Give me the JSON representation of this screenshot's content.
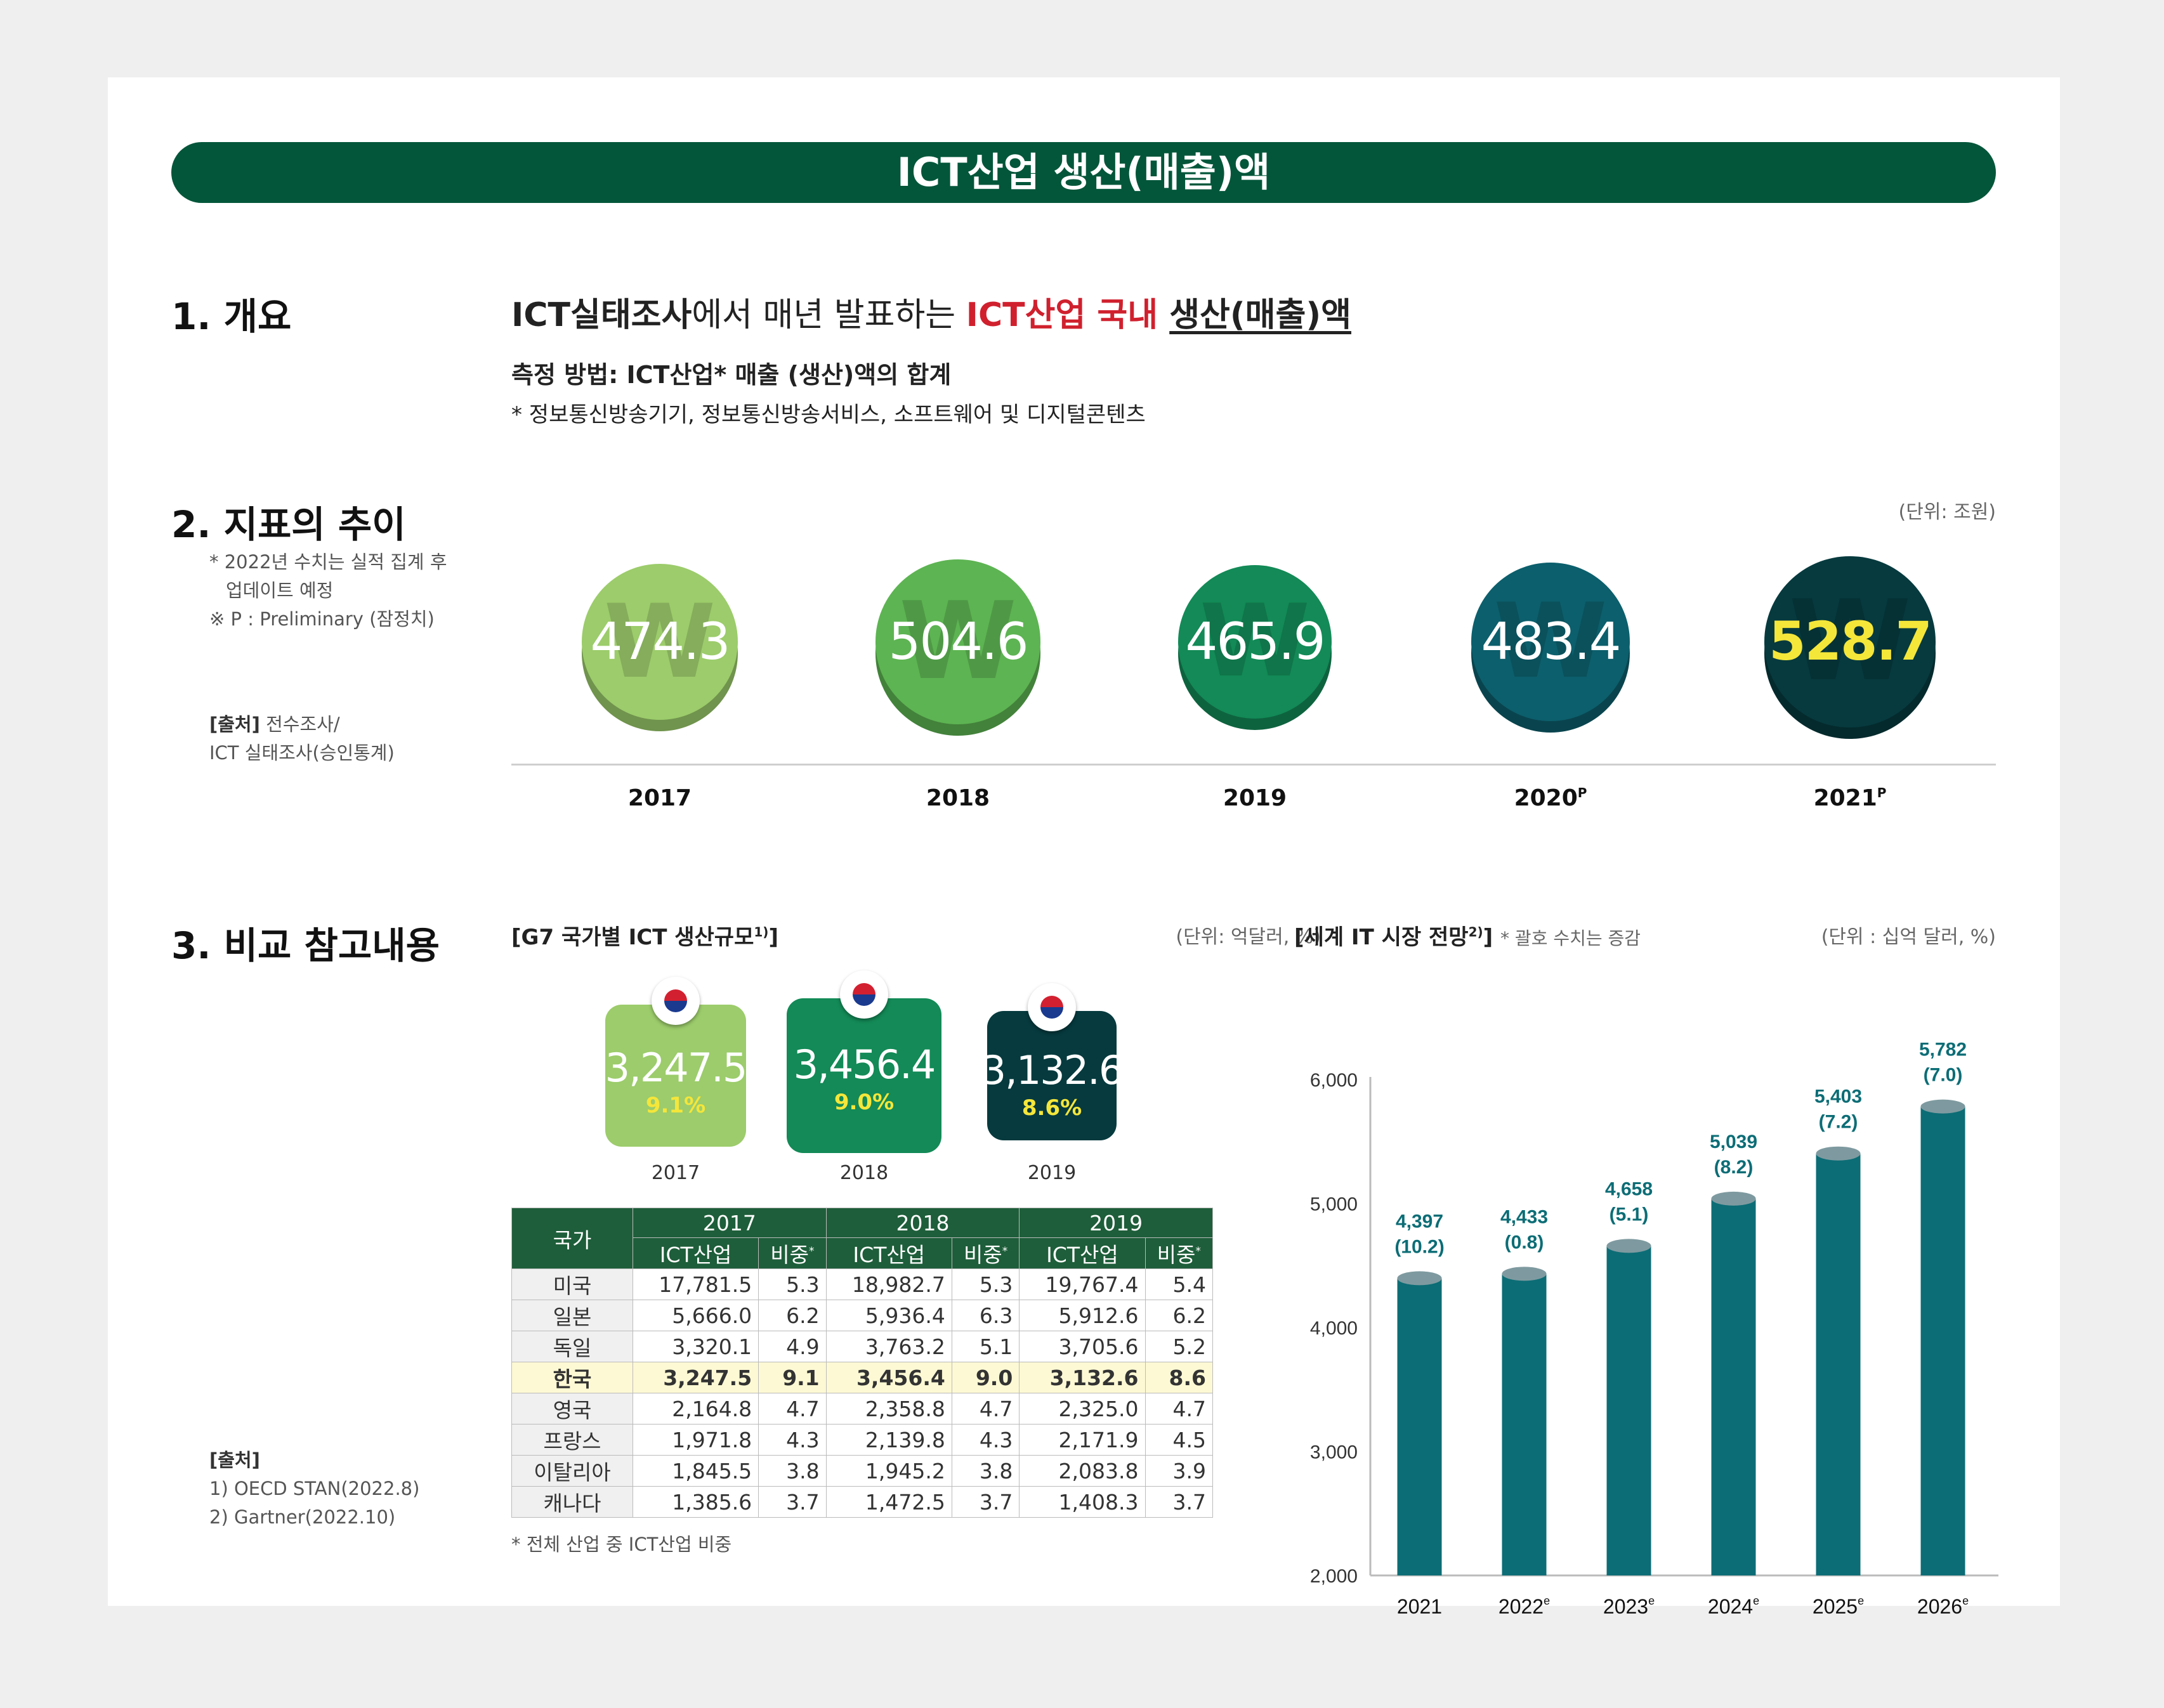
{
  "banner_title": "ICT산업 생산(매출)액",
  "sections": {
    "s1": "1. 개요",
    "s2": "2. 지표의 추이",
    "s3": "3. 비교 참고내용"
  },
  "overview": {
    "headline_part1": "ICT실태조사",
    "headline_part2": "에서 매년 발표하는 ",
    "headline_part3": "ICT산업 국내",
    "headline_part4": "생산(매출)액",
    "method": "측정 방법: ICT산업* 매출 (생산)액의 합계",
    "method_note": "* 정보통신방송기기, 정보통신방송서비스, 소프트웨어 및 디지털콘텐츠"
  },
  "trend_notes": {
    "note1a": "* 2022년 수치는 실적 집계 후",
    "note1b": "업데이트 예정",
    "note2": "※ P : Preliminary (잠정치)",
    "source_label": "[출처]",
    "source_text": " 전수조사/",
    "source_text2": "ICT 실태조사(승인통계)",
    "unit": "(단위: 조원)"
  },
  "compare_notes": {
    "source_label": "[출처]",
    "source1": "1) OECD STAN(2022.8)",
    "source2": "2) Gartner(2022.10)"
  },
  "chart_data": [
    {
      "type": "bar",
      "title": "",
      "unit": "(단위: 조원)",
      "categories": [
        "2017",
        "2018",
        "2019",
        "2020",
        "2021"
      ],
      "category_superscripts": [
        "",
        "",
        "",
        "P",
        "P"
      ],
      "values": [
        474.3,
        504.6,
        465.9,
        483.4,
        528.7
      ],
      "colors": [
        "#9ccc6b",
        "#5db452",
        "#138a57",
        "#0c5f6c",
        "#063a3e"
      ]
    },
    {
      "type": "table",
      "title": "[G7 국가별 ICT 생산규모",
      "title_sup": "1)",
      "title_close": "]",
      "unit": "(단위: 억달러, %)",
      "highlight": {
        "years": [
          "2017",
          "2018",
          "2019"
        ],
        "values": [
          "3,247.5",
          "3,456.4",
          "3,132.6"
        ],
        "shares": [
          "9.1%",
          "9.0%",
          "8.6%"
        ],
        "colors": [
          "#9ccc6b",
          "#138a57",
          "#063a3e"
        ]
      },
      "header_country": "국가",
      "years": [
        "2017",
        "2018",
        "2019"
      ],
      "sub_ict": "ICT산업",
      "sub_share": "비중",
      "sub_share_sup": "*",
      "rows": [
        {
          "country": "미국",
          "v": [
            "17,781.5",
            "5.3",
            "18,982.7",
            "5.3",
            "19,767.4",
            "5.4"
          ]
        },
        {
          "country": "일본",
          "v": [
            "5,666.0",
            "6.2",
            "5,936.4",
            "6.3",
            "5,912.6",
            "6.2"
          ]
        },
        {
          "country": "독일",
          "v": [
            "3,320.1",
            "4.9",
            "3,763.2",
            "5.1",
            "3,705.6",
            "5.2"
          ]
        },
        {
          "country": "한국",
          "v": [
            "3,247.5",
            "9.1",
            "3,456.4",
            "9.0",
            "3,132.6",
            "8.6"
          ]
        },
        {
          "country": "영국",
          "v": [
            "2,164.8",
            "4.7",
            "2,358.8",
            "4.7",
            "2,325.0",
            "4.7"
          ]
        },
        {
          "country": "프랑스",
          "v": [
            "1,971.8",
            "4.3",
            "2,139.8",
            "4.3",
            "2,171.9",
            "4.5"
          ]
        },
        {
          "country": "이탈리아",
          "v": [
            "1,845.5",
            "3.8",
            "1,945.2",
            "3.8",
            "2,083.8",
            "3.9"
          ]
        },
        {
          "country": "캐나다",
          "v": [
            "1,385.6",
            "3.7",
            "1,472.5",
            "3.7",
            "1,408.3",
            "3.7"
          ]
        }
      ],
      "footnote": "* 전체 산업 중 ICT산업 비중"
    },
    {
      "type": "bar",
      "title": "[세계 IT 시장 전망",
      "title_sup": "2)",
      "title_close": "]",
      "subtitle": "* 괄호 수치는 증감",
      "unit": "(단위 : 십억 달러, %)",
      "categories": [
        "2021",
        "2022",
        "2023",
        "2024",
        "2025",
        "2026"
      ],
      "category_superscripts": [
        "",
        "e",
        "e",
        "e",
        "e",
        "e"
      ],
      "values": [
        4397,
        4433,
        4658,
        5039,
        5403,
        5782
      ],
      "value_labels": [
        "4,397",
        "4,433",
        "4,658",
        "5,039",
        "5,403",
        "5,782"
      ],
      "change_labels": [
        "(10.2)",
        "(0.8)",
        "(5.1)",
        "(8.2)",
        "(7.2)",
        "(7.0)"
      ],
      "ylim": [
        2000,
        6000
      ],
      "yticks": [
        "2,000",
        "3,000",
        "4,000",
        "5,000",
        "6,000"
      ],
      "color": "#0c6d76"
    }
  ]
}
